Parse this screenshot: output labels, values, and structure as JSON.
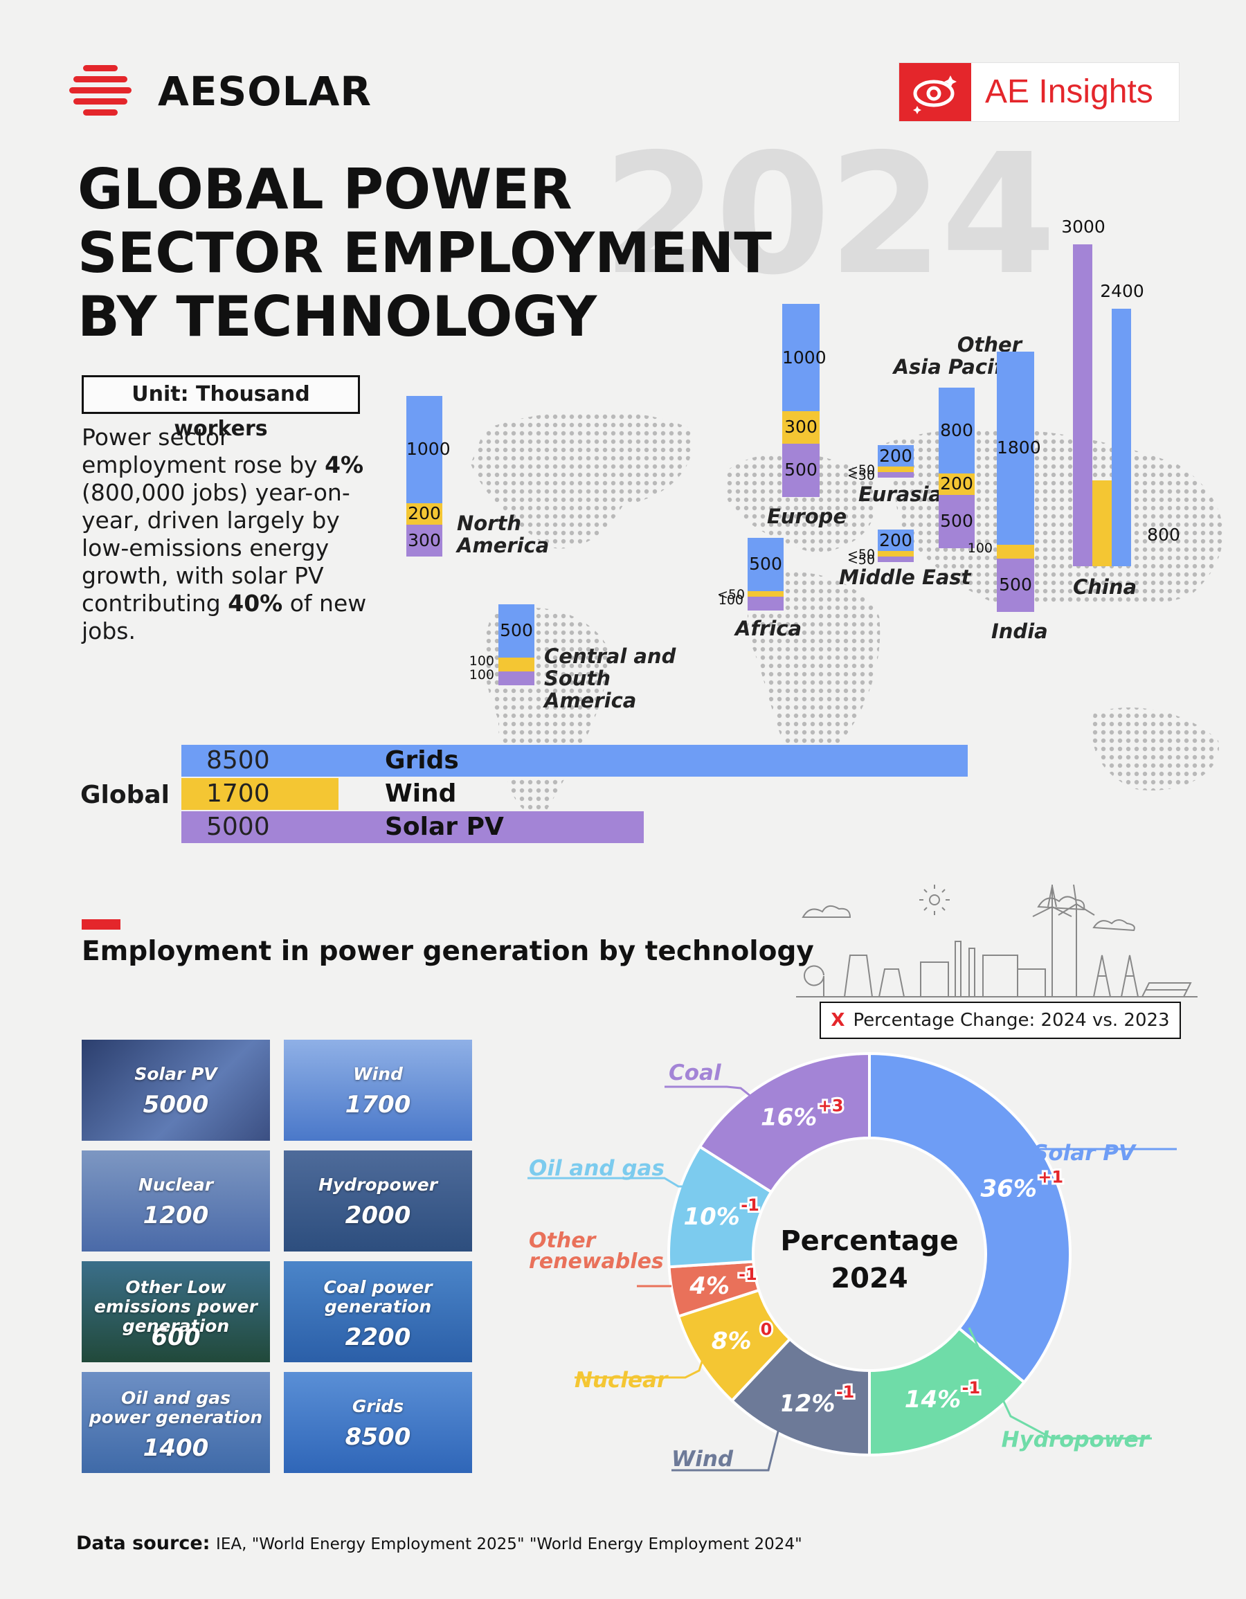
{
  "brand": {
    "name": "AESOLAR",
    "badge": "AE Insights"
  },
  "title": {
    "year": "2024",
    "line1": "GLOBAL POWER",
    "line2": "SECTOR EMPLOYMENT",
    "line3": "BY TECHNOLOGY"
  },
  "unit": "Unit: Thousand workers",
  "intro": {
    "p1": "Power sector employment rose by ",
    "pct": "4%",
    "p2": " (800,000 jobs) year-on-year, driven largely by low-emissions energy growth, with solar PV contributing ",
    "share": "40%",
    "p3": " of new jobs."
  },
  "colors": {
    "grids": "#6e9df5",
    "wind": "#f4c633",
    "solar": "#a384d6",
    "accent": "#e4262b"
  },
  "chart_data": [
    {
      "type": "bar",
      "title": "Employment by region (thousand workers)",
      "series_names": [
        "Grids",
        "Wind",
        "Solar PV"
      ],
      "regions": [
        {
          "name": "North America",
          "grids": "1000",
          "wind": "200",
          "solar": "300"
        },
        {
          "name": "Central and South America",
          "grids": "500",
          "wind": "100",
          "solar": "100"
        },
        {
          "name": "Africa",
          "grids": "500",
          "wind": "<50",
          "solar": "100"
        },
        {
          "name": "Europe",
          "grids": "1000",
          "wind": "300",
          "solar": "500"
        },
        {
          "name": "Eurasia",
          "grids": "200",
          "wind": "<50",
          "solar": "<50"
        },
        {
          "name": "Middle East",
          "grids": "200",
          "wind": "<50",
          "solar": "<50"
        },
        {
          "name": "Other Asia Pacific",
          "grids": "800",
          "wind": "200",
          "solar": "500"
        },
        {
          "name": "India",
          "grids": "1800",
          "wind": "100",
          "solar": "500"
        },
        {
          "name": "China",
          "solar": "3000",
          "wind": "800",
          "grids": "2400"
        }
      ]
    },
    {
      "type": "bar",
      "title": "Global",
      "categories": [
        "Grids",
        "Wind",
        "Solar PV"
      ],
      "values": [
        8500,
        1700,
        5000
      ],
      "label": "Global"
    },
    {
      "type": "pie",
      "title": "Percentage 2024",
      "center_line1": "Percentage",
      "center_line2": "2024",
      "legend_note": "Percentage Change: 2024 vs. 2023",
      "slices": [
        {
          "name": "Solar PV",
          "value": 36,
          "label": "36%",
          "change": "+1",
          "color": "#6e9df5"
        },
        {
          "name": "Hydropower",
          "value": 14,
          "label": "14%",
          "change": "-1",
          "color": "#6fdca8"
        },
        {
          "name": "Wind",
          "value": 12,
          "label": "12%",
          "change": "-1",
          "color": "#6d7a98"
        },
        {
          "name": "Nuclear",
          "value": 8,
          "label": "8%",
          "change": "0",
          "color": "#f4c633"
        },
        {
          "name": "Other renewables",
          "value": 4,
          "label": "4%",
          "change": "-1",
          "color": "#e9715a"
        },
        {
          "name": "Oil and gas",
          "value": 10,
          "label": "10%",
          "change": "-1",
          "color": "#7ccbee"
        },
        {
          "name": "Coal",
          "value": 16,
          "label": "16%",
          "change": "+3",
          "color": "#a384d6"
        }
      ]
    }
  ],
  "section2": {
    "title": "Employment in power generation by technology",
    "tiles": [
      {
        "name": "Solar PV",
        "value": "5000"
      },
      {
        "name": "Wind",
        "value": "1700"
      },
      {
        "name": "Nuclear",
        "value": "1200"
      },
      {
        "name": "Hydropower",
        "value": "2000"
      },
      {
        "name": "Other Low emissions power generation",
        "value": "600"
      },
      {
        "name": "Coal power generation",
        "value": "2200"
      },
      {
        "name": "Oil and gas power generation",
        "value": "1400"
      },
      {
        "name": "Grids",
        "value": "8500"
      }
    ]
  },
  "source": {
    "label": "Data source:",
    "text": "IEA, \"World Energy Employment 2025\" \"World Energy Employment 2024\""
  }
}
